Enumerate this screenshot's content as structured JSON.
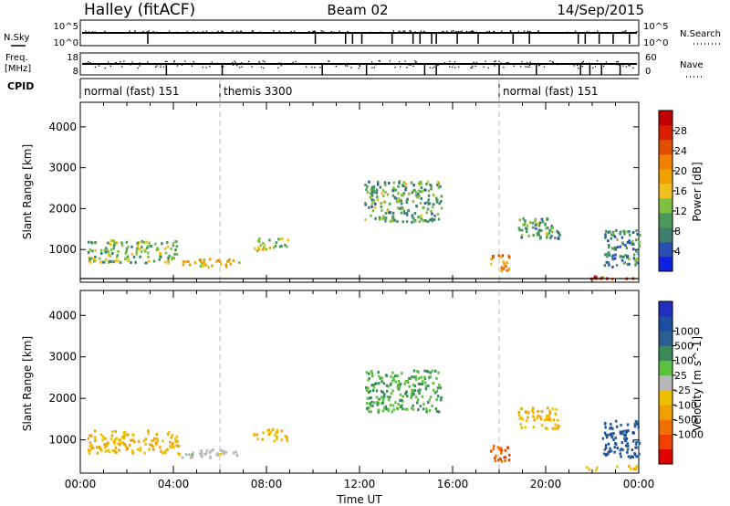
{
  "header": {
    "left": "Halley (fitACF)",
    "center": "Beam 02",
    "right": "14/Sep/2015"
  },
  "panels": {
    "nsky_label": "N.Sky",
    "nsky_ticks": [
      "10^5",
      "10^0"
    ],
    "nsearch_label": "N.Search",
    "nsearch_ticks": [
      "10^5",
      "10^0"
    ],
    "freq_label_1": "Freq.",
    "freq_label_2": "[MHz]",
    "freq_ticks": [
      "18",
      "8"
    ],
    "nave_label": "Nave",
    "nave_ticks": [
      "60",
      "0"
    ],
    "cpid_label": "CPID"
  },
  "cpid_segments": [
    {
      "label": "normal (fast) 151",
      "start": 0.0,
      "end": 6.0
    },
    {
      "label": "themis 3300",
      "start": 6.0,
      "end": 18.0
    },
    {
      "label": "normal (fast) 151",
      "start": 18.0,
      "end": 24.0
    }
  ],
  "colors": {
    "power": [
      "#1020e0",
      "#2a4fb0",
      "#3f7f6f",
      "#4c9a5a",
      "#7fc040",
      "#f0c020",
      "#f0a000",
      "#f08000",
      "#e05000",
      "#d82000",
      "#c00000"
    ],
    "velocity": [
      "#e00000",
      "#f04000",
      "#f07000",
      "#f0a000",
      "#f0c000",
      "#b8b8b8",
      "#5cc040",
      "#3a8a5a",
      "#2a6090",
      "#1a4fa0",
      "#2030c0"
    ]
  },
  "chart_data": [
    {
      "type": "heatmap",
      "title": "",
      "xlabel": "",
      "ylabel": "Slant Range [km]",
      "xlim": [
        0,
        24
      ],
      "ylim": [
        200,
        4600
      ],
      "x_ticks": [
        0,
        4,
        8,
        12,
        16,
        20,
        24
      ],
      "y_ticks": [
        1000,
        2000,
        3000,
        4000
      ],
      "colorbar": {
        "label": "Power [dB]",
        "range": [
          0,
          32
        ],
        "ticks": [
          "4",
          "8",
          "12",
          "16",
          "20",
          "24",
          "28"
        ]
      },
      "regions": [
        {
          "t0": 0.3,
          "t1": 4.2,
          "r0": 700,
          "r1": 1250,
          "value": 12
        },
        {
          "t0": 4.2,
          "t1": 6.8,
          "r0": 600,
          "r1": 800,
          "value": 18
        },
        {
          "t0": 7.4,
          "t1": 8.9,
          "r0": 1000,
          "r1": 1300,
          "value": 14
        },
        {
          "t0": 12.2,
          "t1": 15.5,
          "r0": 1700,
          "r1": 2700,
          "value": 10
        },
        {
          "t0": 17.6,
          "t1": 18.4,
          "r0": 500,
          "r1": 900,
          "value": 22
        },
        {
          "t0": 18.8,
          "t1": 20.6,
          "r0": 1300,
          "r1": 1800,
          "value": 10
        },
        {
          "t0": 21.7,
          "t1": 23.9,
          "r0": 300,
          "r1": 400,
          "value": 26
        },
        {
          "t0": 22.4,
          "t1": 24.0,
          "r0": 600,
          "r1": 1500,
          "value": 8
        }
      ]
    },
    {
      "type": "heatmap",
      "title": "",
      "xlabel": "Time UT",
      "ylabel": "Slant Range [km]",
      "xlim": [
        0,
        24
      ],
      "ylim": [
        200,
        4600
      ],
      "x_ticks": [
        "00:00",
        "04:00",
        "08:00",
        "12:00",
        "16:00",
        "20:00",
        "00:00"
      ],
      "y_ticks": [
        1000,
        2000,
        3000,
        4000
      ],
      "colorbar": {
        "label": "Velocity [m s^-1]",
        "range": [
          -1500,
          1500
        ],
        "ticks": [
          "1000",
          "500",
          "100",
          "25",
          "-25",
          "-100",
          "-500",
          "-1000"
        ]
      },
      "regions": [
        {
          "t0": 0.3,
          "t1": 4.2,
          "r0": 700,
          "r1": 1250,
          "value": -100
        },
        {
          "t0": 4.2,
          "t1": 6.8,
          "r0": 600,
          "r1": 800,
          "value": 0
        },
        {
          "t0": 7.4,
          "t1": 8.9,
          "r0": 1000,
          "r1": 1300,
          "value": -100
        },
        {
          "t0": 12.2,
          "t1": 15.5,
          "r0": 1700,
          "r1": 2700,
          "value": 100
        },
        {
          "t0": 17.6,
          "t1": 18.4,
          "r0": 500,
          "r1": 900,
          "value": -500
        },
        {
          "t0": 18.8,
          "t1": 20.6,
          "r0": 1300,
          "r1": 1800,
          "value": -100
        },
        {
          "t0": 21.7,
          "t1": 23.9,
          "r0": 300,
          "r1": 400,
          "value": -100
        },
        {
          "t0": 22.4,
          "t1": 24.0,
          "r0": 600,
          "r1": 1500,
          "value": 500
        }
      ]
    }
  ]
}
